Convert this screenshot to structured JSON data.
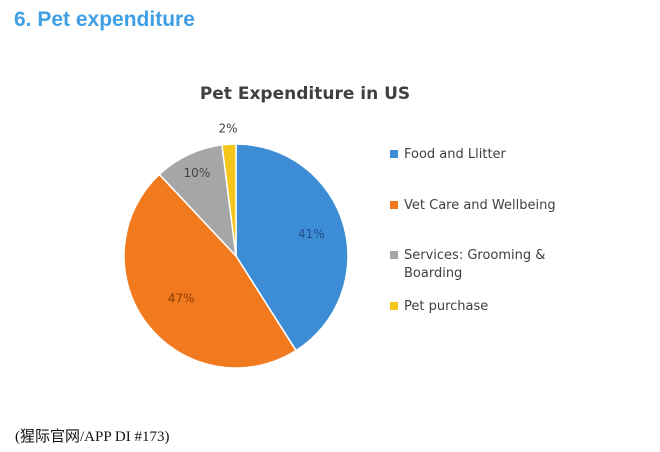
{
  "heading": "6. Pet expenditure",
  "footer": "(猩际官网/APP DI #173)",
  "chart_data": {
    "type": "pie",
    "title": "Pet Expenditure in US",
    "categories": [
      "Food and Llitter",
      "Vet Care and Wellbeing",
      "Services: Grooming & Boarding",
      "Pet purchase"
    ],
    "values": [
      41,
      47,
      10,
      2
    ],
    "data_labels": [
      "41%",
      "47%",
      "10%",
      "2%"
    ],
    "colors": [
      "#3d8dd6",
      "#f27a1e",
      "#a6a6a6",
      "#f5c518"
    ],
    "start_angle_deg": 0,
    "direction": "clockwise",
    "legend_position": "right"
  }
}
